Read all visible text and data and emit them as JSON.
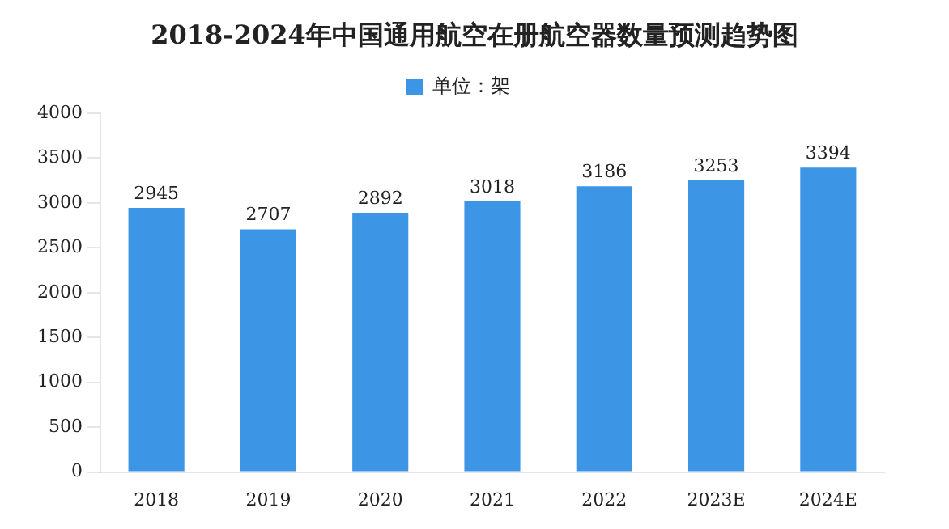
{
  "chart_data": {
    "type": "bar",
    "title": "2018-2024年中国通用航空在册航空器数量预测趋势图",
    "categories": [
      "2018",
      "2019",
      "2020",
      "2021",
      "2022",
      "2023E",
      "2024E"
    ],
    "series": [
      {
        "name": "单位：架",
        "color": "#3d95e6",
        "values": [
          2945,
          2707,
          2892,
          3018,
          3186,
          3253,
          3394
        ]
      }
    ],
    "ylim": [
      0,
      4000
    ],
    "yticks": [
      0,
      500,
      1000,
      1500,
      2000,
      2500,
      3000,
      3500,
      4000
    ],
    "grid": false,
    "legend": "top",
    "data_labels": true
  }
}
